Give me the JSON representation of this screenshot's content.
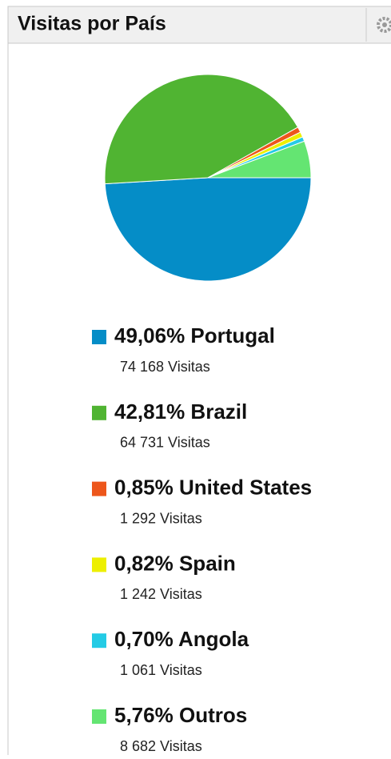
{
  "chart_data": {
    "type": "pie",
    "title": "Visitas por País",
    "categories": [
      "Portugal",
      "Brazil",
      "United States",
      "Spain",
      "Angola",
      "Outros"
    ],
    "values": [
      49.06,
      42.81,
      0.85,
      0.82,
      0.7,
      5.76
    ],
    "value_labels": [
      "49,06%",
      "42,81%",
      "0,85%",
      "0,82%",
      "0,70%",
      "5,76%"
    ],
    "colors": [
      "#058dc7",
      "#50b432",
      "#ed561b",
      "#edef00",
      "#24cbe5",
      "#64e572"
    ],
    "visits": [
      74168,
      64731,
      1292,
      1242,
      1061,
      8682
    ],
    "visit_labels": [
      "74 168 Visitas",
      "64 731 Visitas",
      "1 292 Visitas",
      "1 242 Visitas",
      "1 061 Visitas",
      "8 682 Visitas"
    ]
  }
}
